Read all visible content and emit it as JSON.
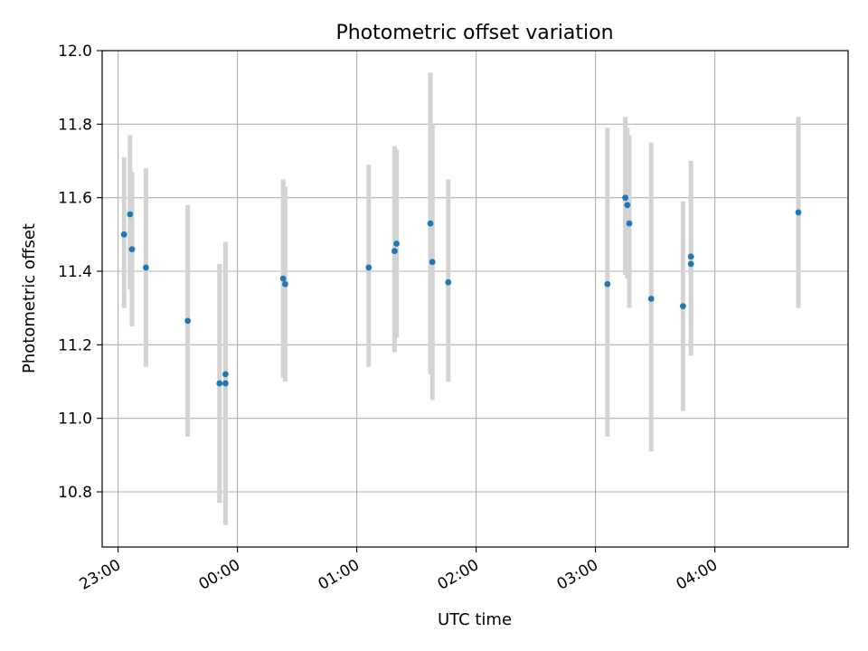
{
  "chart_data": {
    "type": "scatter",
    "title": "Photometric offset variation",
    "xlabel": "UTC time",
    "ylabel": "Photometric offset",
    "grid": true,
    "x_ticks": [
      "23:00",
      "00:00",
      "01:00",
      "02:00",
      "03:00",
      "04:00"
    ],
    "y_ticks": [
      "10.8",
      "11.0",
      "11.2",
      "11.4",
      "11.6",
      "11.8",
      "12.0"
    ],
    "xlim": [
      "22:52",
      "05:07"
    ],
    "ylim": [
      10.65,
      12.0
    ],
    "colors": {
      "points": "#1f77b4",
      "error_bars": "#d3d3d3",
      "grid": "#b0b0b0"
    },
    "series": [
      {
        "points": [
          {
            "time": "23:03",
            "y": 11.5,
            "err_low": 11.3,
            "err_high": 11.71
          },
          {
            "time": "23:06",
            "y": 11.555,
            "err_low": 11.35,
            "err_high": 11.77
          },
          {
            "time": "23:07",
            "y": 11.46,
            "err_low": 11.25,
            "err_high": 11.67
          },
          {
            "time": "23:14",
            "y": 11.41,
            "err_low": 11.14,
            "err_high": 11.68
          },
          {
            "time": "23:35",
            "y": 11.265,
            "err_low": 10.95,
            "err_high": 11.58
          },
          {
            "time": "23:51",
            "y": 11.095,
            "err_low": 10.77,
            "err_high": 11.42
          },
          {
            "time": "23:54",
            "y": 11.095,
            "err_low": 10.71,
            "err_high": 11.48
          },
          {
            "time": "23:54",
            "y": 11.12,
            "err_low": 10.76,
            "err_high": 11.47
          },
          {
            "time": "00:23",
            "y": 11.38,
            "err_low": 11.11,
            "err_high": 11.65
          },
          {
            "time": "00:24",
            "y": 11.365,
            "err_low": 11.1,
            "err_high": 11.63
          },
          {
            "time": "01:06",
            "y": 11.41,
            "err_low": 11.14,
            "err_high": 11.69
          },
          {
            "time": "01:19",
            "y": 11.455,
            "err_low": 11.18,
            "err_high": 11.74
          },
          {
            "time": "01:20",
            "y": 11.475,
            "err_low": 11.22,
            "err_high": 11.73
          },
          {
            "time": "01:37",
            "y": 11.53,
            "err_low": 11.12,
            "err_high": 11.94
          },
          {
            "time": "01:38",
            "y": 11.425,
            "err_low": 11.05,
            "err_high": 11.8
          },
          {
            "time": "01:46",
            "y": 11.37,
            "err_low": 11.1,
            "err_high": 11.65
          },
          {
            "time": "03:06",
            "y": 11.365,
            "err_low": 10.95,
            "err_high": 11.79
          },
          {
            "time": "03:15",
            "y": 11.6,
            "err_low": 11.39,
            "err_high": 11.82
          },
          {
            "time": "03:16",
            "y": 11.58,
            "err_low": 11.38,
            "err_high": 11.79
          },
          {
            "time": "03:17",
            "y": 11.53,
            "err_low": 11.3,
            "err_high": 11.77
          },
          {
            "time": "03:28",
            "y": 11.325,
            "err_low": 10.91,
            "err_high": 11.75
          },
          {
            "time": "03:44",
            "y": 11.305,
            "err_low": 11.02,
            "err_high": 11.59
          },
          {
            "time": "03:48",
            "y": 11.44,
            "err_low": 11.17,
            "err_high": 11.7
          },
          {
            "time": "03:48",
            "y": 11.42,
            "err_low": 11.17,
            "err_high": 11.68
          },
          {
            "time": "04:42",
            "y": 11.56,
            "err_low": 11.3,
            "err_high": 11.82
          }
        ]
      }
    ]
  }
}
